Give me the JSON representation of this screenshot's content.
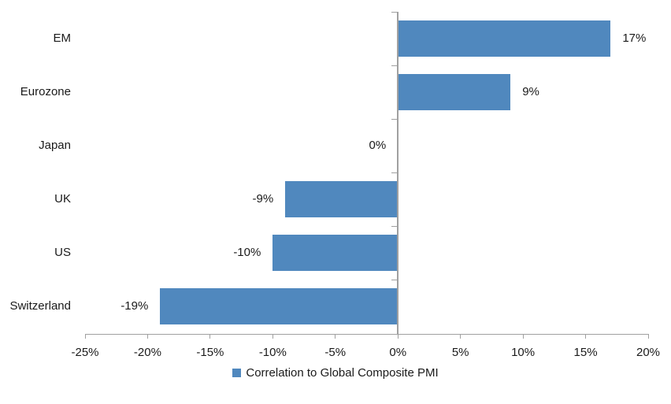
{
  "chart_data": {
    "type": "bar",
    "orientation": "horizontal",
    "title": "",
    "categories": [
      "EM",
      "Eurozone",
      "Japan",
      "UK",
      "US",
      "Switzerland"
    ],
    "series": [
      {
        "name": "Correlation to Global Composite PMI",
        "values": [
          17,
          9,
          0,
          -9,
          -10,
          -19
        ],
        "labels": [
          "17%",
          "9%",
          "0%",
          "-9%",
          "-10%",
          "-19%"
        ]
      }
    ],
    "xlim": [
      -25,
      20
    ],
    "xtick_values": [
      -25,
      -20,
      -15,
      -10,
      -5,
      0,
      5,
      10,
      15,
      20
    ],
    "xtick_labels": [
      "-25%",
      "-20%",
      "-15%",
      "-10%",
      "-5%",
      "0%",
      "5%",
      "10%",
      "15%",
      "20%"
    ],
    "grid": false,
    "legend_position": "bottom-center",
    "colors": {
      "bar": "#5088BE",
      "axis": "#A0A0A0",
      "text": "#1A1A1A"
    }
  },
  "legend": {
    "label": "Correlation to Global Composite PMI",
    "swatch_color": "#5088BE"
  }
}
